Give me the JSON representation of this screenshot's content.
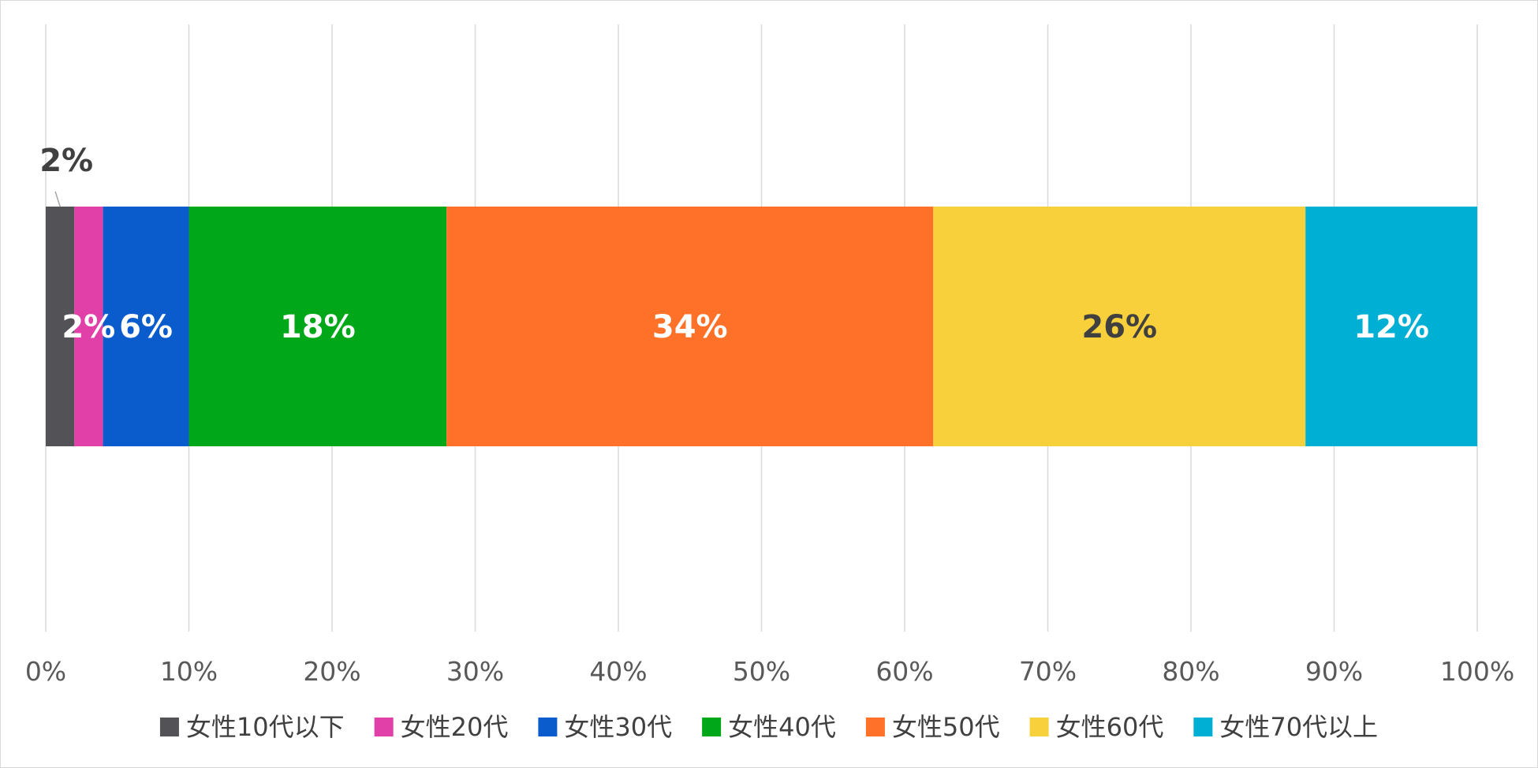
{
  "chart_data": {
    "type": "bar",
    "orientation": "horizontal",
    "stacked": "percent",
    "title": "",
    "xlabel": "",
    "ylabel": "",
    "xlim": [
      0,
      100
    ],
    "x_ticks": [
      "0%",
      "10%",
      "20%",
      "30%",
      "40%",
      "50%",
      "60%",
      "70%",
      "80%",
      "90%",
      "100%"
    ],
    "grid": true,
    "legend_position": "bottom",
    "series": [
      {
        "name": "女性10代以下",
        "value": 2,
        "label": "2%",
        "color": "#525257",
        "label_color": "#404040",
        "label_outside": true
      },
      {
        "name": "女性20代",
        "value": 2,
        "label": "2%",
        "color": "#e040a8",
        "label_color": "#ffffff",
        "label_outside": false
      },
      {
        "name": "女性30代",
        "value": 6,
        "label": "6%",
        "color": "#0a5ccc",
        "label_color": "#ffffff",
        "label_outside": false
      },
      {
        "name": "女性40代",
        "value": 18,
        "label": "18%",
        "color": "#00a819",
        "label_color": "#ffffff",
        "label_outside": false
      },
      {
        "name": "女性50代",
        "value": 34,
        "label": "34%",
        "color": "#ff7128",
        "label_color": "#ffffff",
        "label_outside": false
      },
      {
        "name": "女性60代",
        "value": 26,
        "label": "26%",
        "color": "#f8d03b",
        "label_color": "#404040",
        "label_outside": false
      },
      {
        "name": "女性70代以上",
        "value": 12,
        "label": "12%",
        "color": "#00afd4",
        "label_color": "#ffffff",
        "label_outside": false
      }
    ]
  }
}
